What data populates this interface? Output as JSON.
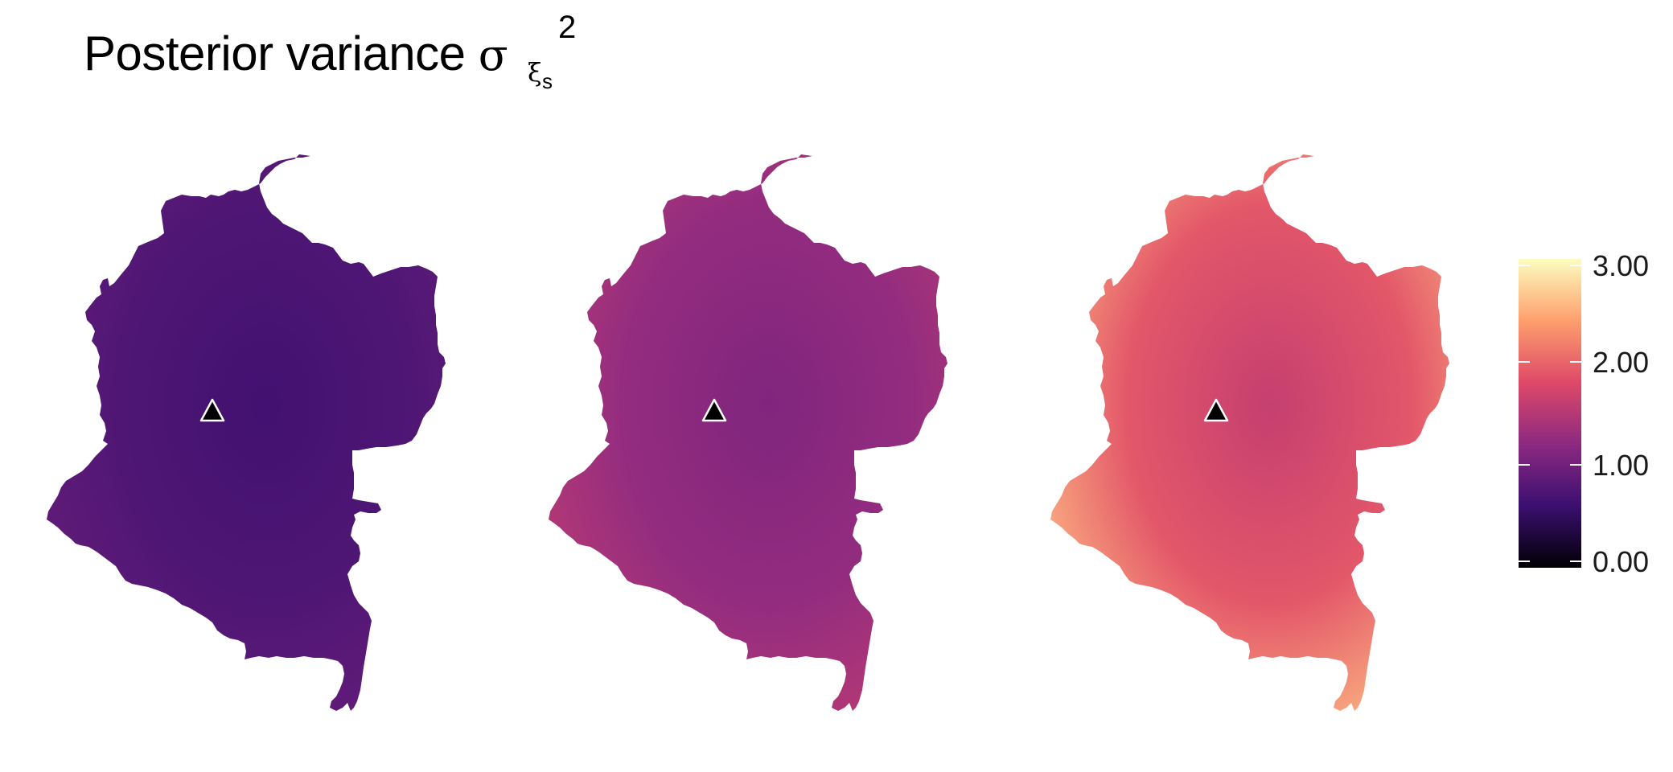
{
  "title": {
    "main": "Posterior variance",
    "symbol": "σ",
    "superscript": "2",
    "subscript": "ξ",
    "sub_subscript": "s"
  },
  "chart_data": {
    "type": "heatmap",
    "description_kind": "three spatial maps of posterior variance sharing one color scale",
    "panels": [
      {
        "label": "",
        "mean_value": 0.75,
        "range": [
          0.5,
          1.0
        ]
      },
      {
        "label": "",
        "mean_value": 1.25,
        "range": [
          0.9,
          1.7
        ]
      },
      {
        "label": "",
        "mean_value": 1.9,
        "range": [
          1.2,
          3.0
        ]
      }
    ],
    "marker": {
      "shape": "triangle",
      "color": "#000000",
      "stroke": "#ffffff"
    },
    "colorbar": {
      "min": 0,
      "max": 3,
      "ticks": [
        0,
        1,
        2,
        3
      ],
      "tick_labels": [
        "0.00",
        "1.00",
        "2.00",
        "3.00"
      ],
      "palette": "magma",
      "stops": [
        "#000004",
        "#3b0f70",
        "#8c2981",
        "#de4968",
        "#fe9f6d",
        "#fcfdbf"
      ],
      "placement": "right"
    }
  }
}
